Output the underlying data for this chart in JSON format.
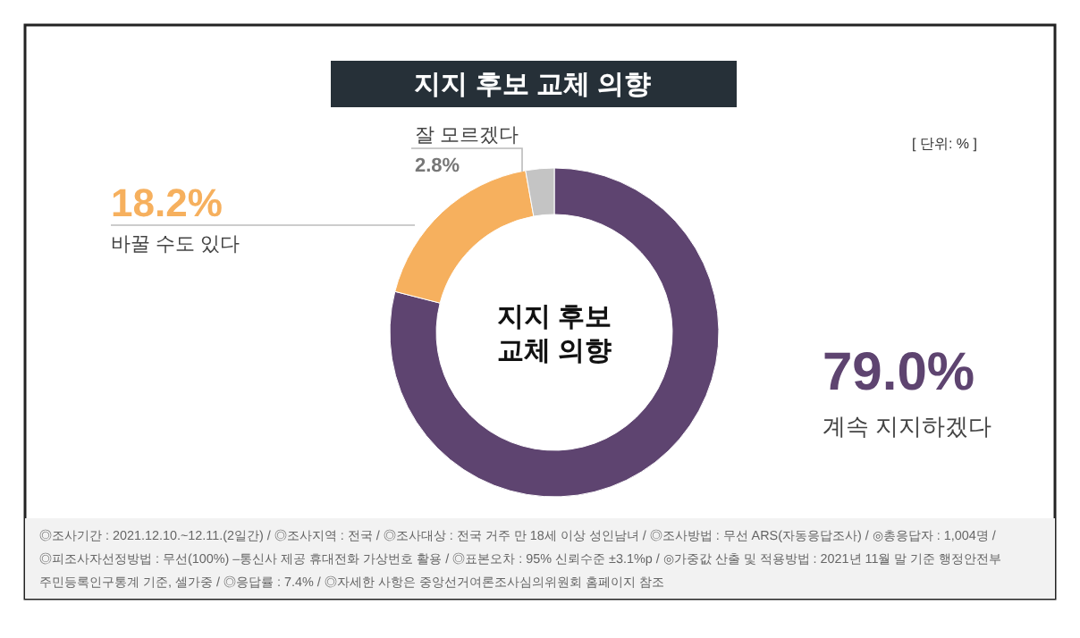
{
  "chart_data": {
    "type": "donut",
    "title": "지지 후보 교체 의향",
    "categories": [
      "계속 지지하겠다",
      "바꿀 수도 있다",
      "잘 모르겠다"
    ],
    "values": [
      79.0,
      18.2,
      2.8
    ],
    "value_labels": [
      "79.0%",
      "18.2%",
      "2.8%"
    ],
    "colors": [
      "#5e4470",
      "#f6b05e",
      "#c4c4c4"
    ],
    "annotations": [
      "지지 후보\n교체 의향",
      "[ 단위: % ]",
      "◎조사기간 : 2021.12.10.~12.11.(2일간)  / ◎조사지역 : 전국 / ◎조사대상 : 전국 거주 만 18세 이상 성인남녀 / ◎조사방법 : 무선 ARS(자동응답조사) / ◎총응답자 : 1,004명 /",
      "◎피조사자선정방법 : 무선(100%) –통신사 제공 휴대전화 가상번호 활용 / ◎표본오차 : 95% 신뢰수준 ±3.1%p / ◎가중값 산출 및 적용방법 : 2021년 11월 말 기준 행정안전부",
      "주민등록인구통계 기준, 셀가중 / ◎응답률 : 7.4% / ◎자세한 사항은 중앙선거여론조사심의위원회 홈페이지 참조"
    ]
  }
}
